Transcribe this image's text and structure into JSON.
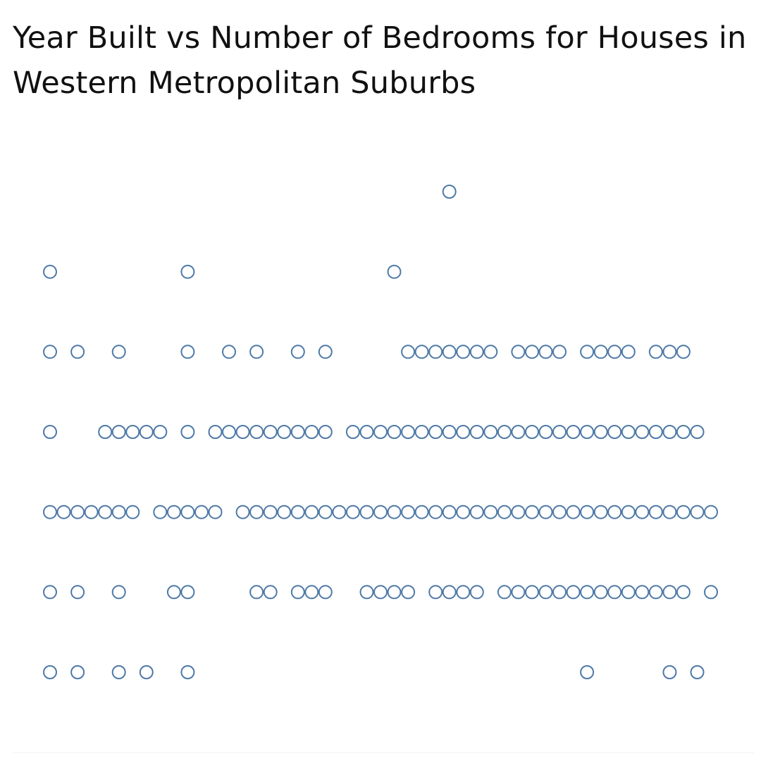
{
  "title": "Year Built vs Number of Bedrooms for Houses in Western Metropolitan Suburbs",
  "colors": {
    "marker_stroke": "#4e79a7",
    "marker_fill": "#ffffff",
    "text": "#111111"
  },
  "chart_data": {
    "type": "scatter",
    "title": "Year Built vs Number of Bedrooms for Houses in Western Metropolitan Suburbs",
    "xlabel": "",
    "ylabel": "",
    "x_axis_shown": false,
    "y_axis_shown": false,
    "grid": false,
    "legend": "none",
    "marker": "open-circle",
    "x_unit": "year-bin index",
    "y_unit": "bedroom-level index (top = highest)",
    "x_min": 0,
    "x_max": 48,
    "y_levels": [
      7,
      6,
      5,
      4,
      3,
      2,
      1
    ],
    "points": [
      {
        "y": 7,
        "x": [
          29
        ]
      },
      {
        "y": 6,
        "x": [
          0,
          10,
          25
        ]
      },
      {
        "y": 5,
        "x": [
          0,
          2,
          5,
          10,
          13,
          15,
          18,
          20,
          26,
          27,
          28,
          29,
          30,
          31,
          32,
          34,
          35,
          36,
          37,
          39,
          40,
          41,
          42,
          44,
          45,
          46
        ]
      },
      {
        "y": 4,
        "x": [
          0,
          4,
          5,
          6,
          7,
          8,
          10,
          12,
          13,
          14,
          15,
          16,
          17,
          18,
          19,
          20,
          22,
          23,
          24,
          25,
          26,
          27,
          28,
          29,
          30,
          31,
          32,
          33,
          34,
          35,
          36,
          37,
          38,
          39,
          40,
          41,
          42,
          43,
          44,
          45,
          46,
          47
        ]
      },
      {
        "y": 3,
        "x": [
          0,
          1,
          2,
          3,
          4,
          5,
          6,
          8,
          9,
          10,
          11,
          12,
          14,
          15,
          16,
          17,
          18,
          19,
          20,
          21,
          22,
          23,
          24,
          25,
          26,
          27,
          28,
          29,
          30,
          31,
          32,
          33,
          34,
          35,
          36,
          37,
          38,
          39,
          40,
          41,
          42,
          43,
          44,
          45,
          46,
          47,
          48
        ]
      },
      {
        "y": 2,
        "x": [
          0,
          2,
          5,
          9,
          10,
          15,
          16,
          18,
          19,
          20,
          23,
          24,
          25,
          26,
          28,
          29,
          30,
          31,
          33,
          34,
          35,
          36,
          37,
          38,
          39,
          40,
          41,
          42,
          43,
          44,
          45,
          46,
          48
        ]
      },
      {
        "y": 1,
        "x": [
          0,
          2,
          5,
          7,
          10,
          39,
          45,
          47
        ]
      }
    ]
  }
}
